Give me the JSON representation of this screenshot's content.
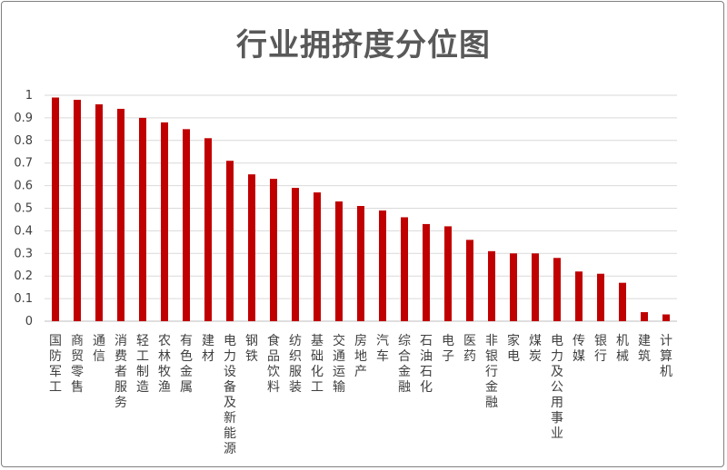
{
  "chart_data": {
    "type": "bar",
    "title": "行业拥挤度分位图",
    "xlabel": "",
    "ylabel": "",
    "ylim": [
      0,
      1
    ],
    "yticks": [
      "0",
      "0.1",
      "0.2",
      "0.3",
      "0.4",
      "0.5",
      "0.6",
      "0.7",
      "0.8",
      "0.9",
      "1"
    ],
    "grid": true,
    "bar_color": "#c00000",
    "categories": [
      "国防军工",
      "商贸零售",
      "通信",
      "消费者服务",
      "轻工制造",
      "农林牧渔",
      "有色金属",
      "建材",
      "电力设备及新能源",
      "钢铁",
      "食品饮料",
      "纺织服装",
      "基础化工",
      "交通运输",
      "房地产",
      "汽车",
      "综合金融",
      "石油石化",
      "电子",
      "医药",
      "非银行金融",
      "家电",
      "煤炭",
      "电力及公用事业",
      "传媒",
      "银行",
      "机械",
      "建筑",
      "计算机"
    ],
    "values": [
      0.99,
      0.98,
      0.96,
      0.94,
      0.9,
      0.88,
      0.85,
      0.81,
      0.71,
      0.65,
      0.63,
      0.59,
      0.57,
      0.53,
      0.51,
      0.49,
      0.46,
      0.43,
      0.42,
      0.36,
      0.31,
      0.3,
      0.3,
      0.28,
      0.22,
      0.21,
      0.17,
      0.04,
      0.03
    ]
  }
}
